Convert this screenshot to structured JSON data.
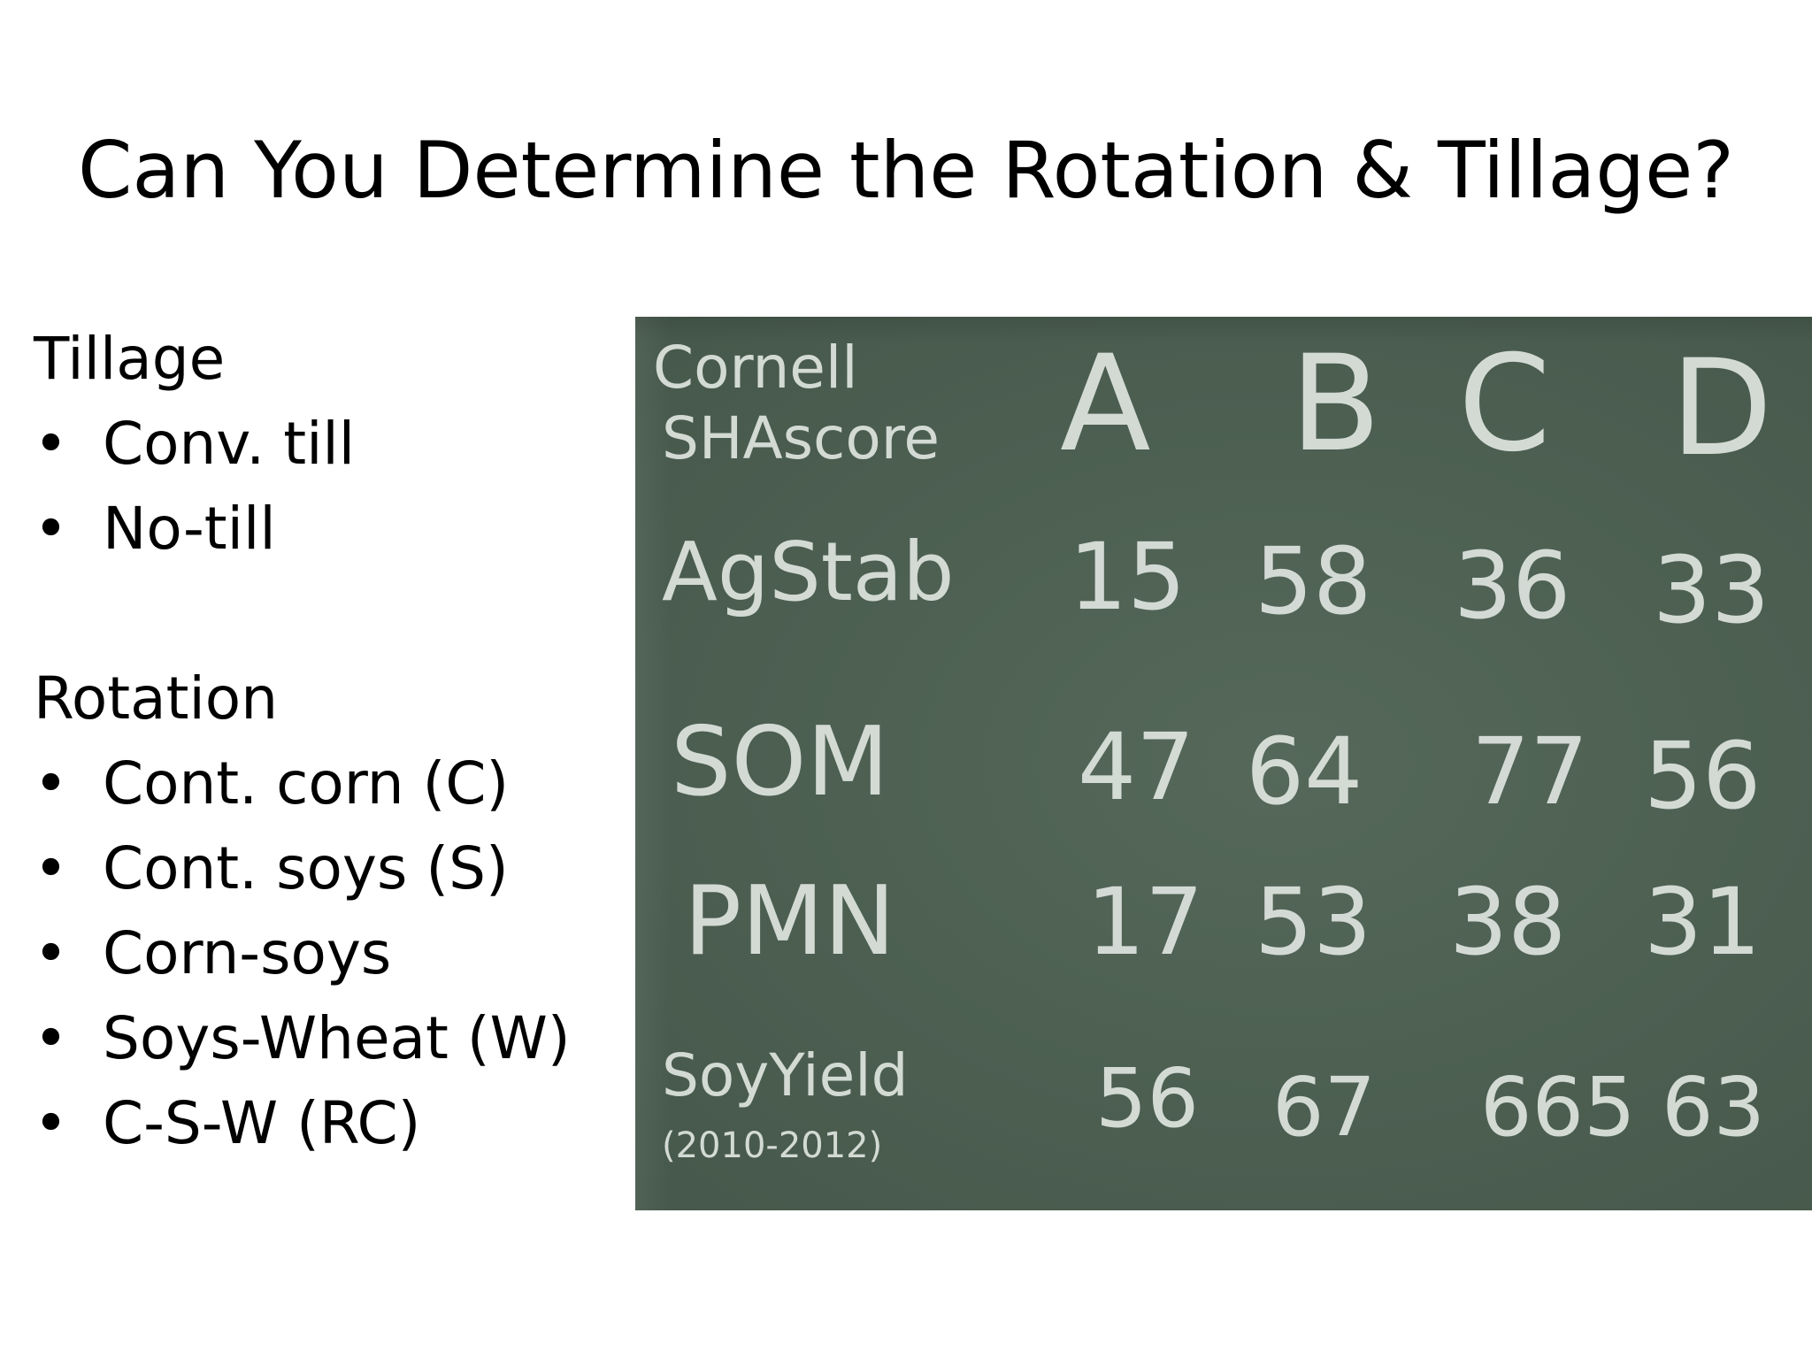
{
  "title": "Can You Determine the Rotation & Tillage?",
  "tillage": {
    "heading": "Tillage",
    "items": [
      "Conv. till",
      "No-till"
    ]
  },
  "rotation": {
    "heading": "Rotation",
    "items": [
      "Cont. corn (C)",
      "Cont. soys (S)",
      "Corn-soys",
      "Soys-Wheat (W)",
      "C-S-W (RC)"
    ]
  },
  "bullet_char": "•",
  "chalkboard": {
    "header_line1": "Cornell",
    "header_line2": "SHAscore",
    "columns": [
      "A",
      "B",
      "C",
      "D"
    ],
    "rows": [
      {
        "label": "AgStab",
        "values": [
          "15",
          "58",
          "36",
          "33"
        ]
      },
      {
        "label": "SOM",
        "values": [
          "47",
          "64",
          "77",
          "56"
        ]
      },
      {
        "label": "PMN",
        "values": [
          "17",
          "53",
          "38",
          "31"
        ]
      },
      {
        "label": "SoyYield",
        "sublabel": "(2010-2012)",
        "values": [
          "56",
          "67",
          "665",
          "63"
        ]
      }
    ]
  },
  "colors": {
    "chalkboard": "#4f6354",
    "chalk": "#dfe5e0",
    "text": "#000000"
  }
}
